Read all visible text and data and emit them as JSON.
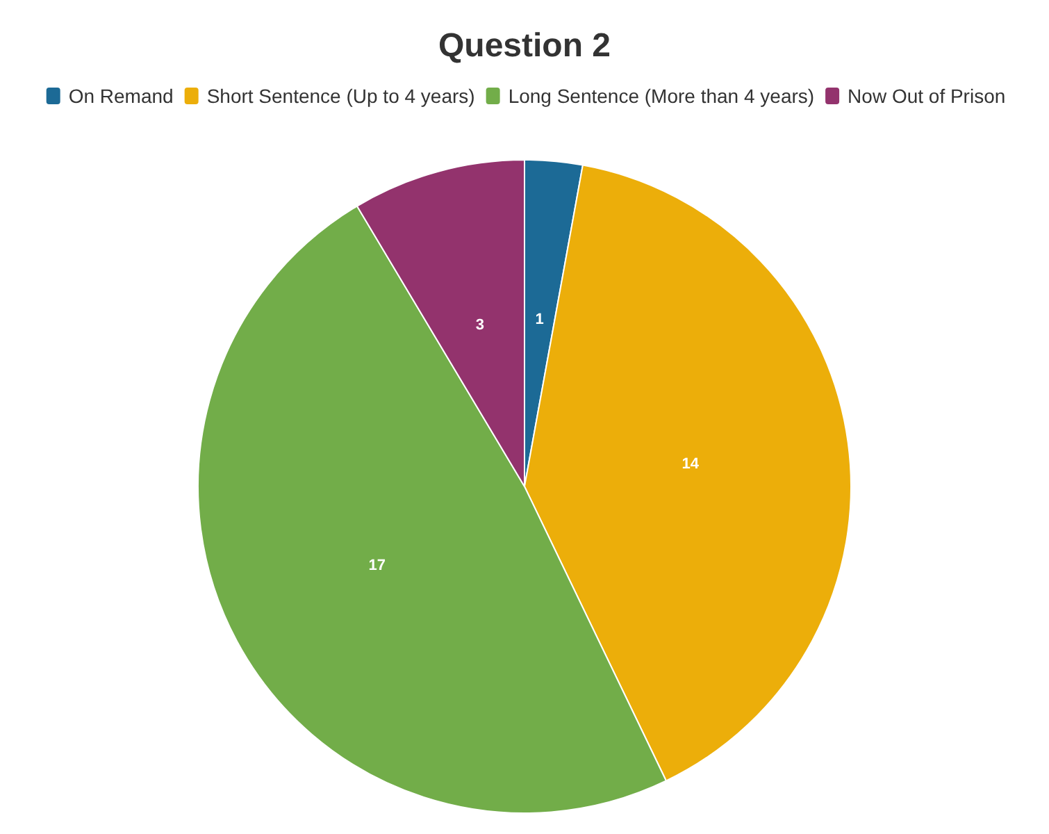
{
  "chart_data": {
    "type": "pie",
    "title": "Question 2",
    "categories": [
      "On Remand",
      "Short Sentence (Up to 4 years)",
      "Long Sentence (More than 4 years)",
      "Now Out of Prison"
    ],
    "values": [
      1,
      14,
      17,
      3
    ],
    "colors": [
      "#1c6a96",
      "#ecae0a",
      "#72ad49",
      "#93336d"
    ],
    "data_labels": true,
    "legend": "top"
  }
}
